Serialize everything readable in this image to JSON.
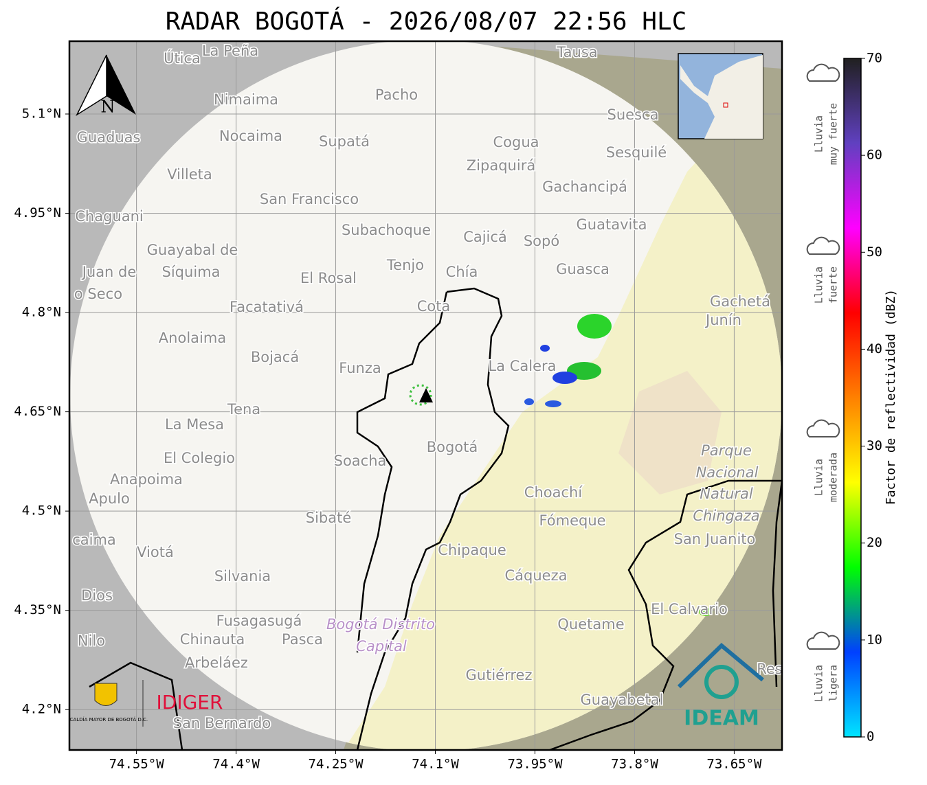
{
  "title": "RADAR BOGOTÁ - 2026/08/07 22:56 HLC",
  "map": {
    "xlim": [
      -74.651,
      -73.578
    ],
    "ylim": [
      4.139,
      5.21
    ],
    "xticks": [
      {
        "value": -74.55,
        "label": "74.55°W"
      },
      {
        "value": -74.4,
        "label": "74.4°W"
      },
      {
        "value": -74.25,
        "label": "74.25°W"
      },
      {
        "value": -74.1,
        "label": "74.1°W"
      },
      {
        "value": -73.95,
        "label": "73.95°W"
      },
      {
        "value": -73.8,
        "label": "73.8°W"
      },
      {
        "value": -73.65,
        "label": "73.65°W"
      }
    ],
    "yticks": [
      {
        "value": 4.2,
        "label": "4.2°N"
      },
      {
        "value": 4.35,
        "label": "4.35°N"
      },
      {
        "value": 4.5,
        "label": "4.5°N"
      },
      {
        "value": 4.65,
        "label": "4.65°N"
      },
      {
        "value": 4.8,
        "label": "4.8°N"
      },
      {
        "value": 4.95,
        "label": "4.95°N"
      },
      {
        "value": 5.1,
        "label": "5.1°N"
      }
    ],
    "grid": true,
    "compass": "N",
    "places": [
      "Útica",
      "La Peña",
      "Tausa",
      "Pacho",
      "Nimaima",
      "Suesca",
      "Guaduas",
      "Nocaima",
      "Supatá",
      "Cogua",
      "Sesquilé",
      "Zipaquirá",
      "Villeta",
      "Gachancipá",
      "San Francisco",
      "Chaguani",
      "Subachoque",
      "Guatavita",
      "Cajicá",
      "Sopó",
      "Guayabal de",
      "Síquima",
      "Tenjo",
      "Chía",
      "Guasca",
      "Juan de",
      "o Seco",
      "El Rosal",
      "Facatativá",
      "Cota",
      "Gachetá",
      "Junín",
      "Anolaima",
      "Bojacá",
      "Funza",
      "La Calera",
      "Tena",
      "La Mesa",
      "Bogotá",
      "El Colegio",
      "Soacha",
      "Parque",
      "Nacional",
      "Natural",
      "Chingaza",
      "Anapoima",
      "Apulo",
      "Choachí",
      "Sibaté",
      "Fómeque",
      "San Juanito",
      "caima",
      "Viotá",
      "Chipaque",
      "Silvania",
      "Cáqueza",
      "Dios",
      "El Calvario",
      "Fusagasugá",
      "Bogotá Distrito",
      "Capital",
      "Quetame",
      "Nilo",
      "Chinauta",
      "Pasca",
      "Arbeláez",
      "Gutiérrez",
      "Res",
      "Guayabetal",
      "San Bernardo"
    ],
    "logos": {
      "alcaldia": "ALCALDÍA MAYOR DE BOGOTÁ D.C.",
      "idiger": "IDIGER",
      "ideam": "IDEAM"
    }
  },
  "colorbar": {
    "label": "Factor de reflectividad (dBZ)",
    "lim": [
      0,
      70
    ],
    "ticks": [
      0,
      10,
      20,
      30,
      40,
      50,
      60,
      70
    ],
    "colors": [
      "#00e5ff",
      "#0040ff",
      "#00ff00",
      "#ffff00",
      "#ff8000",
      "#ff0000",
      "#ff00ff",
      "#6040c0",
      "#202020"
    ]
  },
  "rain_legend": [
    {
      "lines": [
        "Lluvia",
        "muy fuerte"
      ]
    },
    {
      "lines": [
        "Lluvia",
        "fuerte"
      ]
    },
    {
      "lines": [
        "Lluvia",
        "moderada"
      ]
    },
    {
      "lines": [
        "Lluvia",
        "ligera"
      ]
    }
  ]
}
